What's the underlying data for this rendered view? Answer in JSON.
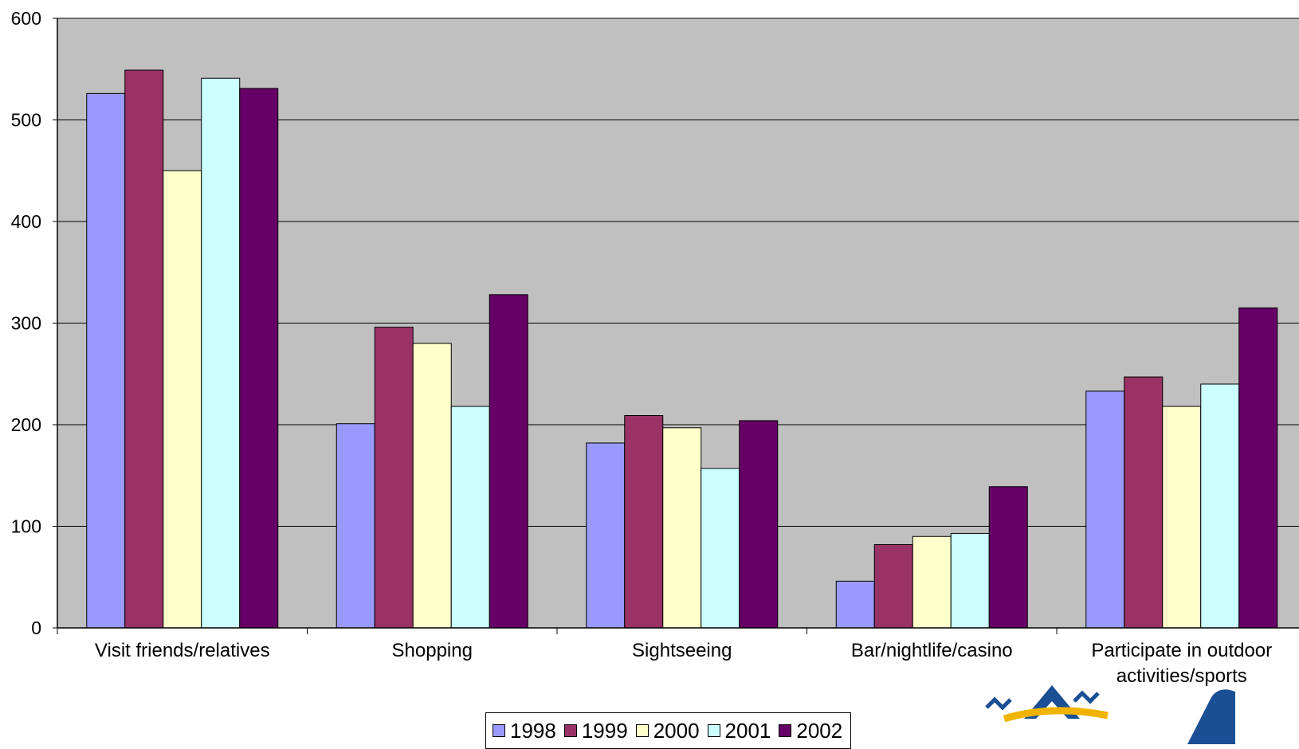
{
  "chart_data": {
    "type": "bar",
    "title": "",
    "xlabel": "",
    "ylabel": "",
    "ylim": [
      0,
      600
    ],
    "yticks": [
      0,
      100,
      200,
      300,
      400,
      500,
      600
    ],
    "grid": true,
    "legend_position": "bottom",
    "categories": [
      "Visit friends/relatives",
      "Shopping",
      "Sightseeing",
      "Bar/nightlife/casino",
      "Participate in outdoor activities/sports"
    ],
    "series": [
      {
        "name": "1998",
        "color": "#9999ff",
        "values": [
          526,
          201,
          182,
          46,
          233
        ]
      },
      {
        "name": "1999",
        "color": "#993366",
        "values": [
          549,
          296,
          209,
          82,
          247
        ]
      },
      {
        "name": "2000",
        "color": "#ffffcc",
        "values": [
          450,
          280,
          197,
          90,
          218
        ]
      },
      {
        "name": "2001",
        "color": "#ccffff",
        "values": [
          541,
          218,
          157,
          93,
          240
        ]
      },
      {
        "name": "2002",
        "color": "#660066",
        "values": [
          531,
          328,
          204,
          139,
          315
        ]
      }
    ]
  },
  "colors": {
    "plot_background": "#c0c0c0",
    "gridline": "#000000"
  },
  "logo": {
    "icon": "mountain-logo-icon"
  }
}
